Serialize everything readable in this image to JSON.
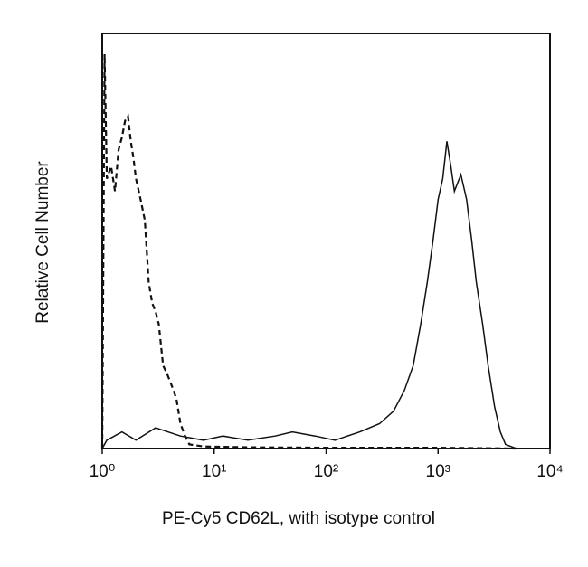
{
  "chart_data": {
    "type": "histogram-line",
    "x_label": "PE-Cy5 CD62L, with isotype control",
    "y_label": "Relative Cell Number",
    "xscale": "log",
    "xlim": [
      1,
      10000
    ],
    "ylim": [
      0,
      100
    ],
    "xticks": [
      {
        "value": 1,
        "label": "10⁰"
      },
      {
        "value": 10,
        "label": "10¹"
      },
      {
        "value": 100,
        "label": "10²"
      },
      {
        "value": 1000,
        "label": "10³"
      },
      {
        "value": 10000,
        "label": "10⁴"
      }
    ],
    "series": [
      {
        "color": "#111111",
        "dashed": true,
        "x": [
          1.0,
          1.05,
          1.1,
          1.2,
          1.3,
          1.4,
          1.5,
          1.6,
          1.7,
          1.8,
          1.9,
          2.0,
          2.2,
          2.4,
          2.6,
          2.8,
          3.0,
          3.2,
          3.5,
          3.8,
          4.2,
          4.6,
          5.0,
          5.5,
          6.0,
          8,
          20,
          100,
          1000,
          5000
        ],
        "values": [
          0,
          95,
          65,
          68,
          62,
          72,
          75,
          79,
          80,
          74,
          70,
          65,
          60,
          55,
          40,
          35,
          33,
          30,
          20,
          18,
          15,
          12,
          6,
          3,
          1,
          0.5,
          0.3,
          0.2,
          0.2,
          0
        ]
      },
      {
        "color": "#111111",
        "dashed": false,
        "x": [
          1,
          1.1,
          1.5,
          2,
          3,
          5,
          8,
          12,
          20,
          35,
          50,
          80,
          120,
          200,
          300,
          400,
          500,
          600,
          700,
          800,
          900,
          1000,
          1100,
          1200,
          1300,
          1400,
          1600,
          1800,
          2000,
          2200,
          2500,
          2800,
          3200,
          3600,
          4000,
          5000
        ],
        "values": [
          0,
          2,
          4,
          2,
          5,
          3,
          2,
          3,
          2,
          3,
          4,
          3,
          2,
          4,
          6,
          9,
          14,
          20,
          30,
          40,
          50,
          60,
          65,
          74,
          68,
          62,
          66,
          60,
          50,
          40,
          30,
          20,
          10,
          4,
          1,
          0
        ]
      }
    ]
  }
}
